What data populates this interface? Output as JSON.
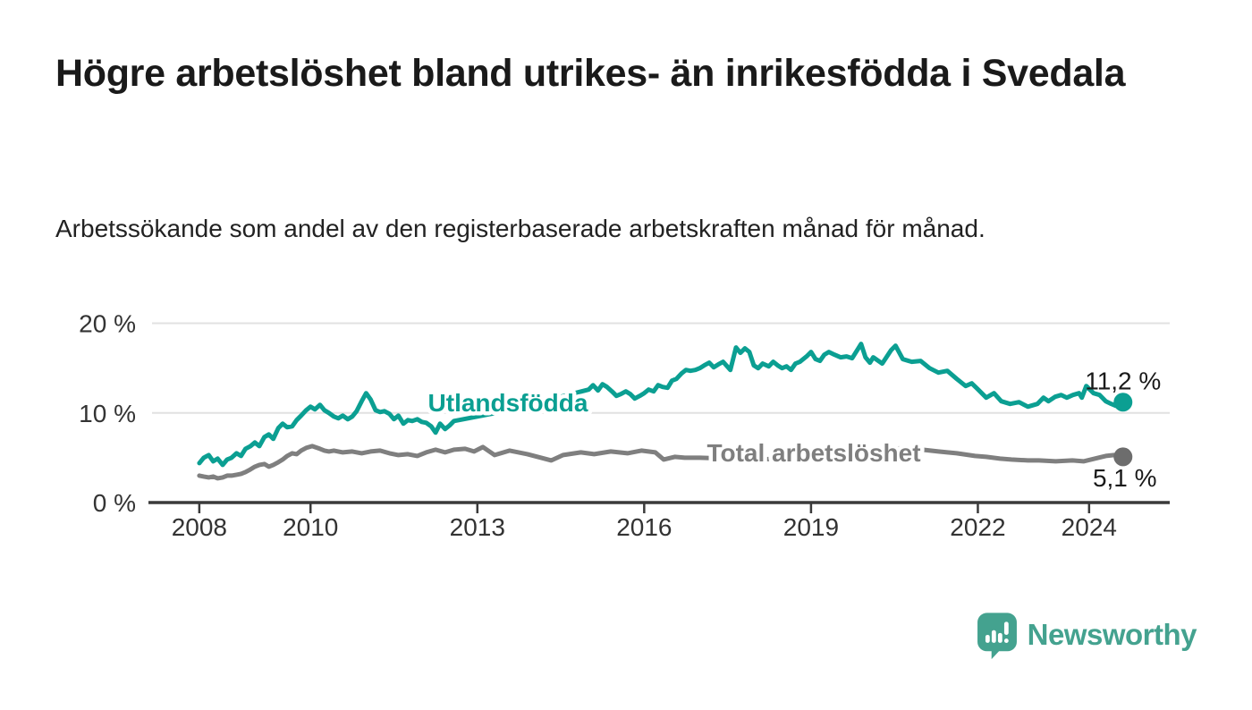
{
  "header": {
    "title": "Högre arbetslöshet bland utrikes- än inrikesfödda i Svedala",
    "subtitle": "Arbetssökande som andel av den registerbaserade arbetskraften månad för månad."
  },
  "branding": {
    "wordmark": "Newsworthy",
    "logo_icon": "speech-bubble-bar-chart-icon",
    "logo_color": "#44a28f"
  },
  "colors": {
    "foreign_born_line": "#0b9f92",
    "total_line": "#7f7f7f",
    "total_dot": "#6d6d6d",
    "axis": "#3a3a3a",
    "grid": "#e1e1e1",
    "tick_label": "#333333",
    "value_label": "#1a1a1a",
    "background": "#ffffff"
  },
  "chart_data": {
    "type": "line",
    "x_unit": "decimal_year",
    "xlim": [
      2007.15,
      2025.45
    ],
    "ylim": [
      0,
      21.75
    ],
    "grid": "horizontal",
    "x_ticks": [
      {
        "value": 2008,
        "label": "2008"
      },
      {
        "value": 2010,
        "label": "2010"
      },
      {
        "value": 2013,
        "label": "2013"
      },
      {
        "value": 2016,
        "label": "2016"
      },
      {
        "value": 2019,
        "label": "2019"
      },
      {
        "value": 2022,
        "label": "2022"
      },
      {
        "value": 2024,
        "label": "2024"
      }
    ],
    "y_ticks": [
      {
        "value": 0,
        "label": "0 %"
      },
      {
        "value": 10,
        "label": "10 %"
      },
      {
        "value": 20,
        "label": "20 %"
      }
    ],
    "series": [
      {
        "name": "Utlandsfödda",
        "color": "#0b9f92",
        "dot_color": "#0b9f92",
        "label": {
          "text": "Utlandsfödda",
          "x": 2013.55,
          "y": 10.18
        },
        "end_label": "11,2 %",
        "end_value": 11.2,
        "end_label_offset": [
          0,
          -14
        ],
        "points": [
          [
            2008.0,
            4.4
          ],
          [
            2008.08,
            5.0
          ],
          [
            2008.17,
            5.3
          ],
          [
            2008.25,
            4.6
          ],
          [
            2008.33,
            4.9
          ],
          [
            2008.42,
            4.2
          ],
          [
            2008.5,
            4.8
          ],
          [
            2008.58,
            5.0
          ],
          [
            2008.67,
            5.5
          ],
          [
            2008.75,
            5.2
          ],
          [
            2008.83,
            6.0
          ],
          [
            2008.92,
            6.3
          ],
          [
            2009.0,
            6.7
          ],
          [
            2009.08,
            6.3
          ],
          [
            2009.17,
            7.3
          ],
          [
            2009.25,
            7.6
          ],
          [
            2009.33,
            7.1
          ],
          [
            2009.42,
            8.3
          ],
          [
            2009.5,
            8.8
          ],
          [
            2009.58,
            8.4
          ],
          [
            2009.67,
            8.5
          ],
          [
            2009.75,
            9.2
          ],
          [
            2009.83,
            9.7
          ],
          [
            2009.92,
            10.3
          ],
          [
            2010.0,
            10.7
          ],
          [
            2010.08,
            10.4
          ],
          [
            2010.17,
            10.9
          ],
          [
            2010.25,
            10.3
          ],
          [
            2010.33,
            10.0
          ],
          [
            2010.42,
            9.6
          ],
          [
            2010.5,
            9.4
          ],
          [
            2010.58,
            9.7
          ],
          [
            2010.67,
            9.3
          ],
          [
            2010.75,
            9.6
          ],
          [
            2010.83,
            10.2
          ],
          [
            2010.92,
            11.3
          ],
          [
            2011.0,
            12.2
          ],
          [
            2011.08,
            11.5
          ],
          [
            2011.17,
            10.3
          ],
          [
            2011.25,
            10.1
          ],
          [
            2011.33,
            10.2
          ],
          [
            2011.42,
            9.9
          ],
          [
            2011.5,
            9.3
          ],
          [
            2011.58,
            9.7
          ],
          [
            2011.67,
            8.8
          ],
          [
            2011.75,
            9.2
          ],
          [
            2011.83,
            9.1
          ],
          [
            2011.92,
            9.3
          ],
          [
            2012.0,
            9.0
          ],
          [
            2012.08,
            8.9
          ],
          [
            2012.17,
            8.5
          ],
          [
            2012.25,
            7.8
          ],
          [
            2012.33,
            8.8
          ],
          [
            2012.42,
            8.2
          ],
          [
            2012.5,
            8.6
          ],
          [
            2012.58,
            9.1
          ],
          [
            2012.75,
            9.3
          ],
          [
            2013.0,
            9.6
          ],
          [
            2013.25,
            9.9
          ],
          [
            2013.5,
            10.2
          ],
          [
            2013.75,
            10.6
          ],
          [
            2014.0,
            11.0
          ],
          [
            2014.25,
            11.4
          ],
          [
            2014.5,
            11.8
          ],
          [
            2014.75,
            12.2
          ],
          [
            2015.0,
            12.6
          ],
          [
            2015.08,
            13.1
          ],
          [
            2015.17,
            12.5
          ],
          [
            2015.25,
            13.2
          ],
          [
            2015.33,
            12.9
          ],
          [
            2015.42,
            12.4
          ],
          [
            2015.5,
            11.9
          ],
          [
            2015.58,
            12.1
          ],
          [
            2015.67,
            12.4
          ],
          [
            2015.75,
            12.1
          ],
          [
            2015.83,
            11.6
          ],
          [
            2015.92,
            11.9
          ],
          [
            2016.0,
            12.2
          ],
          [
            2016.08,
            12.6
          ],
          [
            2016.17,
            12.4
          ],
          [
            2016.25,
            13.1
          ],
          [
            2016.33,
            12.9
          ],
          [
            2016.42,
            12.8
          ],
          [
            2016.5,
            13.6
          ],
          [
            2016.58,
            13.8
          ],
          [
            2016.67,
            14.4
          ],
          [
            2016.75,
            14.8
          ],
          [
            2016.83,
            14.7
          ],
          [
            2016.92,
            14.8
          ],
          [
            2017.0,
            15.0
          ],
          [
            2017.08,
            15.3
          ],
          [
            2017.17,
            15.6
          ],
          [
            2017.25,
            15.1
          ],
          [
            2017.33,
            15.4
          ],
          [
            2017.42,
            15.7
          ],
          [
            2017.55,
            14.8
          ],
          [
            2017.65,
            17.3
          ],
          [
            2017.73,
            16.7
          ],
          [
            2017.81,
            17.2
          ],
          [
            2017.89,
            16.8
          ],
          [
            2017.97,
            15.3
          ],
          [
            2018.05,
            15.0
          ],
          [
            2018.13,
            15.5
          ],
          [
            2018.24,
            15.2
          ],
          [
            2018.32,
            15.7
          ],
          [
            2018.4,
            15.3
          ],
          [
            2018.48,
            15.0
          ],
          [
            2018.56,
            15.2
          ],
          [
            2018.64,
            14.8
          ],
          [
            2018.72,
            15.5
          ],
          [
            2018.8,
            15.7
          ],
          [
            2018.92,
            16.3
          ],
          [
            2019.0,
            16.8
          ],
          [
            2019.08,
            16.0
          ],
          [
            2019.16,
            15.8
          ],
          [
            2019.24,
            16.5
          ],
          [
            2019.32,
            16.8
          ],
          [
            2019.42,
            16.5
          ],
          [
            2019.53,
            16.2
          ],
          [
            2019.64,
            16.3
          ],
          [
            2019.74,
            16.1
          ],
          [
            2019.85,
            17.2
          ],
          [
            2019.9,
            17.7
          ],
          [
            2019.98,
            16.2
          ],
          [
            2020.06,
            15.6
          ],
          [
            2020.12,
            16.2
          ],
          [
            2020.28,
            15.5
          ],
          [
            2020.44,
            17.0
          ],
          [
            2020.52,
            17.5
          ],
          [
            2020.65,
            16.0
          ],
          [
            2020.81,
            15.7
          ],
          [
            2020.97,
            15.8
          ],
          [
            2021.13,
            15.0
          ],
          [
            2021.29,
            14.5
          ],
          [
            2021.45,
            14.7
          ],
          [
            2021.62,
            13.8
          ],
          [
            2021.78,
            13.0
          ],
          [
            2021.89,
            13.3
          ],
          [
            2021.99,
            12.7
          ],
          [
            2022.15,
            11.7
          ],
          [
            2022.29,
            12.2
          ],
          [
            2022.42,
            11.3
          ],
          [
            2022.58,
            11.0
          ],
          [
            2022.74,
            11.2
          ],
          [
            2022.9,
            10.7
          ],
          [
            2023.07,
            11.0
          ],
          [
            2023.18,
            11.7
          ],
          [
            2023.27,
            11.3
          ],
          [
            2023.39,
            11.8
          ],
          [
            2023.5,
            12.0
          ],
          [
            2023.6,
            11.7
          ],
          [
            2023.71,
            12.0
          ],
          [
            2023.82,
            12.2
          ],
          [
            2023.87,
            11.7
          ],
          [
            2023.95,
            13.0
          ],
          [
            2024.08,
            12.2
          ],
          [
            2024.19,
            12.0
          ],
          [
            2024.3,
            11.3
          ],
          [
            2024.4,
            11.0
          ],
          [
            2024.48,
            10.8
          ],
          [
            2024.61,
            11.2
          ]
        ]
      },
      {
        "name": "Total arbetslöshet",
        "color": "#7f7f7f",
        "dot_color": "#6d6d6d",
        "label": {
          "text": "Total arbetslöshet",
          "x": 2019.05,
          "y": 4.59
        },
        "end_label": "5,1 %",
        "end_value": 5.1,
        "end_label_offset": [
          2,
          33
        ],
        "points": [
          [
            2008.0,
            3.0
          ],
          [
            2008.08,
            2.9
          ],
          [
            2008.17,
            2.8
          ],
          [
            2008.25,
            2.9
          ],
          [
            2008.33,
            2.7
          ],
          [
            2008.42,
            2.8
          ],
          [
            2008.5,
            3.0
          ],
          [
            2008.58,
            3.0
          ],
          [
            2008.67,
            3.1
          ],
          [
            2008.75,
            3.2
          ],
          [
            2008.83,
            3.4
          ],
          [
            2008.92,
            3.7
          ],
          [
            2009.0,
            4.0
          ],
          [
            2009.08,
            4.2
          ],
          [
            2009.17,
            4.3
          ],
          [
            2009.25,
            4.0
          ],
          [
            2009.33,
            4.2
          ],
          [
            2009.42,
            4.5
          ],
          [
            2009.5,
            4.8
          ],
          [
            2009.58,
            5.2
          ],
          [
            2009.67,
            5.5
          ],
          [
            2009.75,
            5.4
          ],
          [
            2009.83,
            5.8
          ],
          [
            2009.92,
            6.1
          ],
          [
            2010.03,
            6.3
          ],
          [
            2010.17,
            6.0
          ],
          [
            2010.25,
            5.8
          ],
          [
            2010.33,
            5.7
          ],
          [
            2010.42,
            5.8
          ],
          [
            2010.5,
            5.7
          ],
          [
            2010.58,
            5.6
          ],
          [
            2010.75,
            5.7
          ],
          [
            2010.92,
            5.5
          ],
          [
            2011.08,
            5.7
          ],
          [
            2011.25,
            5.8
          ],
          [
            2011.42,
            5.5
          ],
          [
            2011.58,
            5.3
          ],
          [
            2011.75,
            5.4
          ],
          [
            2011.92,
            5.2
          ],
          [
            2012.08,
            5.6
          ],
          [
            2012.25,
            5.9
          ],
          [
            2012.42,
            5.6
          ],
          [
            2012.58,
            5.9
          ],
          [
            2012.78,
            6.0
          ],
          [
            2012.94,
            5.7
          ],
          [
            2013.1,
            6.2
          ],
          [
            2013.31,
            5.3
          ],
          [
            2013.58,
            5.8
          ],
          [
            2013.9,
            5.4
          ],
          [
            2014.33,
            4.7
          ],
          [
            2014.54,
            5.3
          ],
          [
            2014.86,
            5.6
          ],
          [
            2015.1,
            5.4
          ],
          [
            2015.4,
            5.7
          ],
          [
            2015.7,
            5.5
          ],
          [
            2015.95,
            5.8
          ],
          [
            2016.2,
            5.6
          ],
          [
            2016.35,
            4.8
          ],
          [
            2016.55,
            5.1
          ],
          [
            2016.73,
            5.0
          ],
          [
            2017.0,
            5.0
          ],
          [
            2017.5,
            4.9
          ],
          [
            2018.0,
            4.8
          ],
          [
            2018.5,
            4.9
          ],
          [
            2019.0,
            5.0
          ],
          [
            2019.5,
            5.1
          ],
          [
            2020.0,
            5.6
          ],
          [
            2020.4,
            6.0
          ],
          [
            2020.8,
            6.1
          ],
          [
            2021.0,
            5.9
          ],
          [
            2021.29,
            5.7
          ],
          [
            2021.45,
            5.6
          ],
          [
            2021.62,
            5.5
          ],
          [
            2021.95,
            5.2
          ],
          [
            2022.15,
            5.1
          ],
          [
            2022.4,
            4.9
          ],
          [
            2022.6,
            4.8
          ],
          [
            2022.9,
            4.7
          ],
          [
            2023.1,
            4.7
          ],
          [
            2023.4,
            4.6
          ],
          [
            2023.7,
            4.7
          ],
          [
            2023.9,
            4.6
          ],
          [
            2024.1,
            4.9
          ],
          [
            2024.3,
            5.2
          ],
          [
            2024.45,
            5.3
          ],
          [
            2024.61,
            5.1
          ]
        ]
      }
    ]
  }
}
